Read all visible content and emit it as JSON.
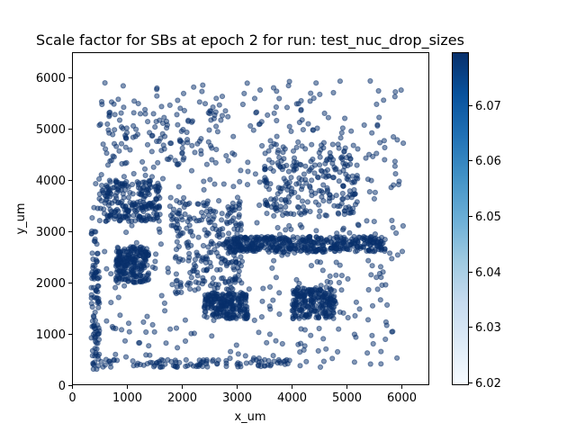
{
  "chart_data": {
    "type": "scatter",
    "title": "Scale factor for SBs at epoch 2 for run: test_nuc_drop_sizes",
    "xlabel": "x_um",
    "ylabel": "y_um",
    "xlim": [
      0,
      6500
    ],
    "ylim": [
      0,
      6500
    ],
    "x_ticks": [
      0,
      1000,
      2000,
      3000,
      4000,
      5000,
      6000
    ],
    "y_ticks": [
      0,
      1000,
      2000,
      3000,
      4000,
      5000,
      6000
    ],
    "point_color": "#08306b",
    "colorbar": {
      "range": [
        6.0195,
        6.0795
      ],
      "ticks": [
        "6.02",
        "6.03",
        "6.04",
        "6.05",
        "6.06",
        "6.07"
      ],
      "tick_values": [
        6.02,
        6.03,
        6.04,
        6.05,
        6.06,
        6.07
      ],
      "colormap": "Blues",
      "colors": [
        "#f7fbff",
        "#deebf7",
        "#c6dbef",
        "#9ecae1",
        "#6baed6",
        "#4292c6",
        "#2171b5",
        "#08519c",
        "#08306b"
      ]
    },
    "clusters": [
      {
        "region": "upper-left band",
        "x": [
          600,
          2700
        ],
        "y": [
          4300,
          5600
        ],
        "density": "medium"
      },
      {
        "region": "left block",
        "x": [
          500,
          1600
        ],
        "y": [
          3200,
          4000
        ],
        "density": "high"
      },
      {
        "region": "left lower block",
        "x": [
          800,
          1400
        ],
        "y": [
          2000,
          2700
        ],
        "density": "high"
      },
      {
        "region": "center-left diagonal",
        "x": [
          1800,
          3100
        ],
        "y": [
          1800,
          3600
        ],
        "density": "high"
      },
      {
        "region": "lower center",
        "x": [
          2400,
          3200
        ],
        "y": [
          1300,
          1800
        ],
        "density": "high"
      },
      {
        "region": "horizontal band",
        "x": [
          2800,
          5700
        ],
        "y": [
          2600,
          2900
        ],
        "density": "very high"
      },
      {
        "region": "right arc",
        "x": [
          3500,
          5200
        ],
        "y": [
          3300,
          4700
        ],
        "density": "high"
      },
      {
        "region": "lower right block",
        "x": [
          4000,
          4800
        ],
        "y": [
          1300,
          1900
        ],
        "density": "high"
      },
      {
        "region": "bottom edge",
        "x": [
          500,
          4000
        ],
        "y": [
          350,
          500
        ],
        "density": "medium"
      },
      {
        "region": "left edge",
        "x": [
          350,
          500
        ],
        "y": [
          300,
          3000
        ],
        "density": "medium"
      }
    ]
  }
}
